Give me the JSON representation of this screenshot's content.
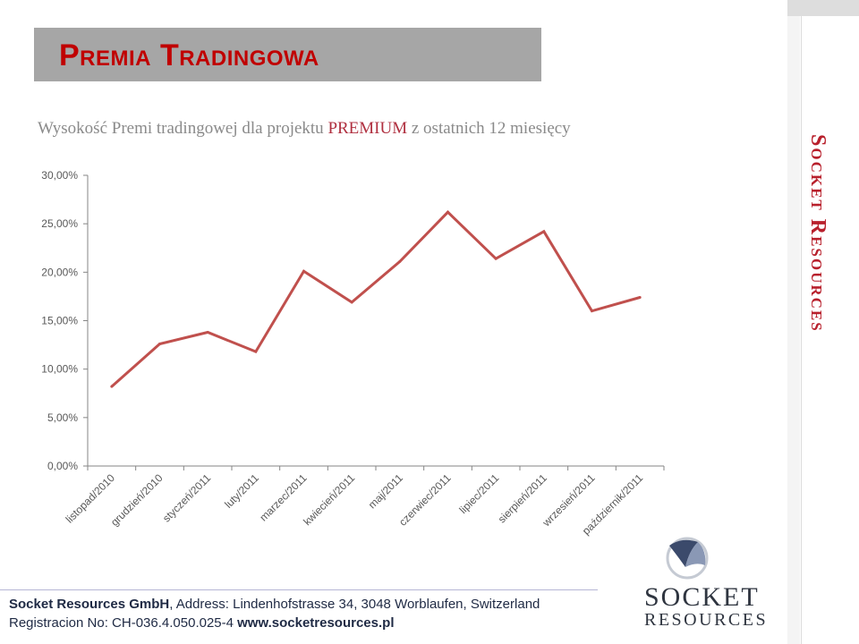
{
  "header": {
    "title": "Premia Tradingowa"
  },
  "subtitle": {
    "part1": "Wysokość Premi tradingowej dla projektu ",
    "highlight": "PREMIUM",
    "part2": " z ostatnich 12 miesięcy"
  },
  "side": {
    "brand": "Socket Resources"
  },
  "footer": {
    "company": "Socket Resources GmbH",
    "address": ", Address: Lindenhofstrasse 34, 3048 Worblaufen, Switzerland",
    "reg": "Registracion No: CH-036.4.050.025-4 ",
    "url": "www.socketresources.pl"
  },
  "logo": {
    "top": "SOCKET",
    "bottom": "RESOURCES"
  },
  "colors": {
    "title": "#c00000",
    "line": "#c0504d",
    "side_brand": "#b8202c"
  },
  "chart_data": {
    "type": "line",
    "title": "",
    "xlabel": "",
    "ylabel": "",
    "categories": [
      "listopad/2010",
      "grudzień/2010",
      "styczeń/2011",
      "luty/2011",
      "marzec/2011",
      "kwiecień/2011",
      "maj/2011",
      "czerwiec/2011",
      "lipiec/2011",
      "sierpień/2011",
      "wrzesień/2011",
      "październik/2011"
    ],
    "series": [
      {
        "values": [
          8.2,
          12.6,
          13.8,
          11.8,
          20.1,
          16.9,
          21.1,
          26.2,
          21.4,
          24.2,
          16.0,
          17.4
        ]
      }
    ],
    "y_ticks": [
      "0,00%",
      "5,00%",
      "10,00%",
      "15,00%",
      "20,00%",
      "25,00%",
      "30,00%"
    ],
    "ylim": [
      0,
      30
    ],
    "grid": false,
    "legend": "none"
  }
}
